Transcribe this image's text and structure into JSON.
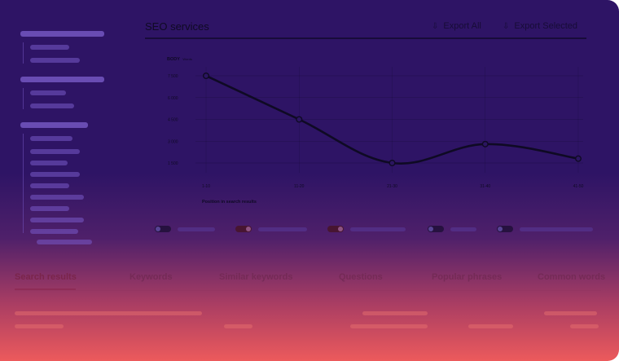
{
  "header": {
    "title": "SEO services",
    "export_all": "Export All",
    "export_selected": "Export Selected"
  },
  "chart_data": {
    "type": "line",
    "ylabel": "BODY",
    "ylabel_unit": "Words",
    "xlabel": "Position in search results",
    "categories": [
      "1-10",
      "11-20",
      "21-30",
      "31-40",
      "41-50"
    ],
    "values": [
      7500,
      4500,
      1500,
      2800,
      1800
    ],
    "yticks": [
      "1 500",
      "3 000",
      "4 500",
      "6 000",
      "7 500"
    ],
    "ytick_values": [
      1500,
      3000,
      4500,
      6000,
      7500
    ],
    "ylim": [
      1500,
      7500
    ],
    "grid": true,
    "curve": "smooth",
    "line_color": "#0f0a24"
  },
  "tabs": [
    {
      "label": "Search results",
      "active": true
    },
    {
      "label": "Keywords",
      "active": false
    },
    {
      "label": "Similar keywords",
      "active": false
    },
    {
      "label": "Questions",
      "active": false
    },
    {
      "label": "Popular phrases",
      "active": false
    },
    {
      "label": "Common words",
      "active": false
    }
  ],
  "toggles": [
    {
      "on": false
    },
    {
      "on": true
    },
    {
      "on": true
    },
    {
      "on": false
    },
    {
      "on": false
    }
  ],
  "icons": {
    "export_all": "export-all-icon",
    "export_selected": "export-selected-icon"
  }
}
